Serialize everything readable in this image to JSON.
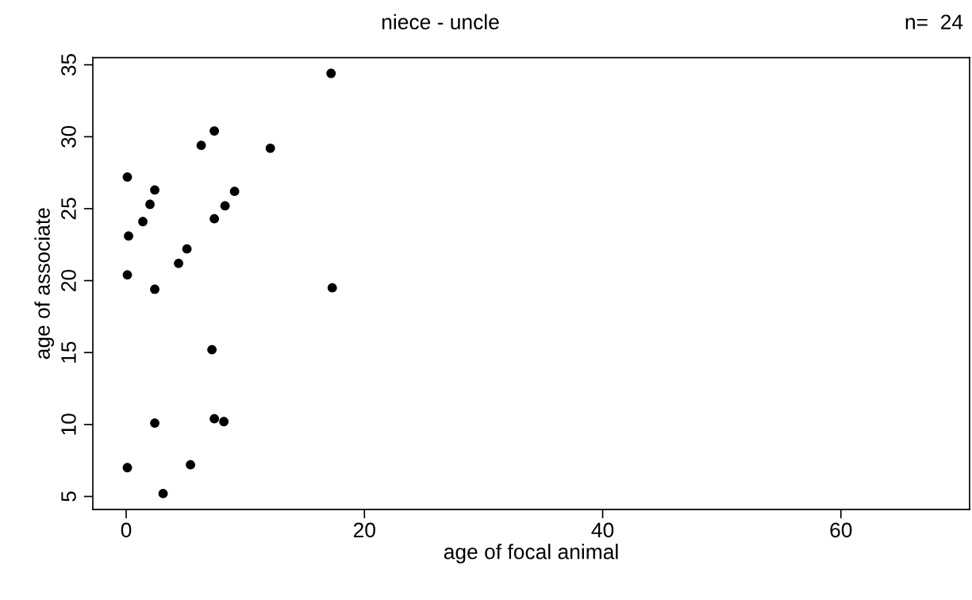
{
  "chart_data": {
    "type": "scatter",
    "title": "niece - uncle",
    "xlabel": "age of focal animal",
    "ylabel": "age of associate",
    "annotations": [
      "n=  24"
    ],
    "x": [
      17.2,
      7.4,
      6.3,
      12.1,
      0.1,
      2.4,
      9.1,
      2.0,
      8.3,
      1.4,
      7.4,
      0.2,
      5.1,
      4.4,
      0.1,
      2.4,
      17.3,
      7.2,
      2.4,
      7.4,
      8.2,
      0.1,
      5.4,
      3.1
    ],
    "series": [
      {
        "color": "#000000",
        "values": [
          34.4,
          30.4,
          29.4,
          29.2,
          27.2,
          26.3,
          26.2,
          25.3,
          25.2,
          24.1,
          24.3,
          23.1,
          22.2,
          21.2,
          20.4,
          19.4,
          19.5,
          15.2,
          10.1,
          10.4,
          10.2,
          7.0,
          7.2,
          5.2
        ]
      }
    ],
    "xlim": [
      -2.8,
      70.8
    ],
    "ylim": [
      4.1,
      35.5
    ],
    "xticks": [
      0,
      20,
      40,
      60
    ],
    "yticks": [
      5,
      10,
      15,
      20,
      25,
      30,
      35
    ],
    "marker": "circle",
    "grid": false,
    "legend": false
  }
}
